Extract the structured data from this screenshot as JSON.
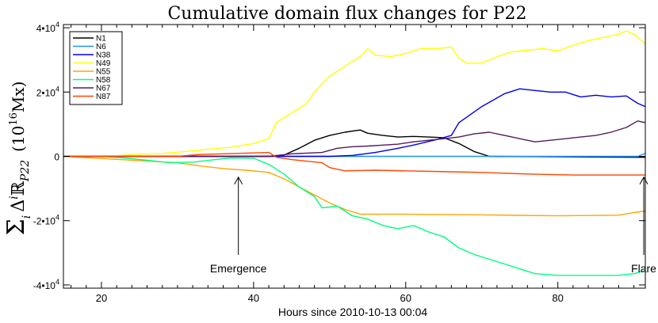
{
  "chart_data": {
    "type": "line",
    "title": "Cumulative domain flux changes for P22",
    "xlabel": "Hours since 2010-10-13 00:04",
    "ylabel_lines": [
      "Σ",
      "i",
      "Δ",
      "i",
      "ℝ",
      "P22",
      "(10",
      "16",
      "Mx)"
    ],
    "xlim": [
      15,
      91.5
    ],
    "ylim": [
      -41000,
      41000
    ],
    "x_ticks": [
      20,
      40,
      60,
      80
    ],
    "y_ticks": [
      {
        "value": 40000,
        "mant": "4•10",
        "exp": "4"
      },
      {
        "value": 20000,
        "mant": "2•10",
        "exp": "4"
      },
      {
        "value": 0,
        "mant": "0",
        "exp": ""
      },
      {
        "value": -20000,
        "mant": "-2•10",
        "exp": "4"
      },
      {
        "value": -40000,
        "mant": "-4•10",
        "exp": "4"
      }
    ],
    "legend_position": "top-left",
    "series": [
      {
        "name": "N1",
        "color": "#000000",
        "points": [
          [
            15,
            0
          ],
          [
            42,
            0
          ],
          [
            44,
            400
          ],
          [
            46,
            2500
          ],
          [
            48,
            5000
          ],
          [
            50,
            6500
          ],
          [
            52,
            7500
          ],
          [
            54,
            8200
          ],
          [
            55,
            7200
          ],
          [
            57,
            6500
          ],
          [
            59,
            6000
          ],
          [
            61,
            6200
          ],
          [
            63,
            6000
          ],
          [
            65,
            5800
          ],
          [
            67,
            4000
          ],
          [
            69,
            1500
          ],
          [
            71,
            0
          ],
          [
            91.5,
            -300
          ]
        ]
      },
      {
        "name": "N6",
        "color": "#1e90ff",
        "points": [
          [
            15,
            0
          ],
          [
            90.5,
            0
          ],
          [
            91.5,
            900
          ]
        ]
      },
      {
        "name": "N38",
        "color": "#0000ee",
        "points": [
          [
            15,
            0
          ],
          [
            50,
            0
          ],
          [
            53,
            300
          ],
          [
            56,
            1200
          ],
          [
            59,
            2500
          ],
          [
            61,
            3500
          ],
          [
            64,
            5200
          ],
          [
            66,
            6500
          ],
          [
            67,
            10500
          ],
          [
            70,
            15500
          ],
          [
            73,
            19500
          ],
          [
            75,
            21000
          ],
          [
            77,
            20500
          ],
          [
            79,
            20000
          ],
          [
            81,
            20000
          ],
          [
            83,
            18500
          ],
          [
            85,
            19000
          ],
          [
            87,
            18500
          ],
          [
            89,
            18800
          ],
          [
            90.5,
            16500
          ],
          [
            91.5,
            15500
          ]
        ]
      },
      {
        "name": "N49",
        "color": "#ffff00",
        "points": [
          [
            15,
            0
          ],
          [
            22,
            200
          ],
          [
            25,
            700
          ],
          [
            28,
            900
          ],
          [
            31,
            1500
          ],
          [
            34,
            2200
          ],
          [
            37,
            2800
          ],
          [
            40,
            4000
          ],
          [
            42,
            5500
          ],
          [
            43,
            10500
          ],
          [
            45,
            13500
          ],
          [
            46,
            15000
          ],
          [
            47,
            16500
          ],
          [
            48,
            20000
          ],
          [
            50,
            25000
          ],
          [
            52,
            28000
          ],
          [
            54,
            31000
          ],
          [
            55,
            33500
          ],
          [
            56,
            31500
          ],
          [
            58,
            31000
          ],
          [
            60,
            32000
          ],
          [
            62,
            33500
          ],
          [
            64,
            33500
          ],
          [
            66,
            34000
          ],
          [
            67,
            30500
          ],
          [
            68,
            29000
          ],
          [
            70,
            29000
          ],
          [
            72,
            31000
          ],
          [
            74,
            32500
          ],
          [
            76,
            33000
          ],
          [
            78,
            33500
          ],
          [
            80,
            32800
          ],
          [
            82,
            34500
          ],
          [
            84,
            36000
          ],
          [
            86,
            37000
          ],
          [
            88,
            38000
          ],
          [
            89,
            39000
          ],
          [
            90,
            38000
          ],
          [
            91.5,
            35000
          ]
        ]
      },
      {
        "name": "N55",
        "color": "#ffa500",
        "points": [
          [
            15,
            0
          ],
          [
            30,
            -2000
          ],
          [
            33,
            -3000
          ],
          [
            36,
            -3800
          ],
          [
            39,
            -4300
          ],
          [
            42,
            -5000
          ],
          [
            44,
            -7000
          ],
          [
            46,
            -9500
          ],
          [
            48,
            -12000
          ],
          [
            50,
            -14500
          ],
          [
            52,
            -16500
          ],
          [
            54,
            -18000
          ],
          [
            60,
            -18000
          ],
          [
            70,
            -18200
          ],
          [
            80,
            -18500
          ],
          [
            88,
            -18300
          ],
          [
            90,
            -17500
          ],
          [
            91.5,
            -17000
          ]
        ]
      },
      {
        "name": "N58",
        "color": "#00ff7f",
        "points": [
          [
            15,
            0
          ],
          [
            20,
            0
          ],
          [
            23,
            -500
          ],
          [
            26,
            -1200
          ],
          [
            29,
            -2000
          ],
          [
            32,
            -1800
          ],
          [
            35,
            -1000
          ],
          [
            37,
            -500
          ],
          [
            40,
            -600
          ],
          [
            42,
            -2500
          ],
          [
            44,
            -5500
          ],
          [
            46,
            -9500
          ],
          [
            48,
            -12500
          ],
          [
            49,
            -16000
          ],
          [
            51,
            -15500
          ],
          [
            53,
            -18500
          ],
          [
            55,
            -19500
          ],
          [
            57,
            -21500
          ],
          [
            59,
            -22500
          ],
          [
            61,
            -21500
          ],
          [
            63,
            -23500
          ],
          [
            65,
            -25000
          ],
          [
            67,
            -28500
          ],
          [
            69,
            -30500
          ],
          [
            71,
            -32000
          ],
          [
            73,
            -33500
          ],
          [
            75,
            -35000
          ],
          [
            77,
            -36500
          ],
          [
            80,
            -37000
          ],
          [
            84,
            -37000
          ],
          [
            88,
            -37000
          ],
          [
            90,
            -36500
          ],
          [
            91.5,
            -35500
          ]
        ]
      },
      {
        "name": "N67",
        "color": "#551a5b",
        "points": [
          [
            15,
            0
          ],
          [
            42,
            0
          ],
          [
            45,
            800
          ],
          [
            47,
            1000
          ],
          [
            49,
            1200
          ],
          [
            51,
            2500
          ],
          [
            53,
            3000
          ],
          [
            55,
            3200
          ],
          [
            57,
            3500
          ],
          [
            59,
            3800
          ],
          [
            61,
            4500
          ],
          [
            63,
            5000
          ],
          [
            65,
            5500
          ],
          [
            67,
            6000
          ],
          [
            69,
            7000
          ],
          [
            71,
            7500
          ],
          [
            73,
            6500
          ],
          [
            75,
            5500
          ],
          [
            77,
            4500
          ],
          [
            79,
            5000
          ],
          [
            81,
            5500
          ],
          [
            83,
            6000
          ],
          [
            85,
            6500
          ],
          [
            87,
            7500
          ],
          [
            89,
            9000
          ],
          [
            90.5,
            11000
          ],
          [
            91.5,
            10500
          ]
        ]
      },
      {
        "name": "N87",
        "color": "#ff4500",
        "points": [
          [
            15,
            0
          ],
          [
            30,
            0
          ],
          [
            33,
            600
          ],
          [
            36,
            800
          ],
          [
            39,
            1000
          ],
          [
            42,
            1200
          ],
          [
            43,
            -300
          ],
          [
            45,
            -1000
          ],
          [
            47,
            -1500
          ],
          [
            49,
            -2000
          ],
          [
            50,
            -3500
          ],
          [
            52,
            -4500
          ],
          [
            56,
            -4300
          ],
          [
            60,
            -4500
          ],
          [
            66,
            -4800
          ],
          [
            70,
            -5000
          ],
          [
            76,
            -5500
          ],
          [
            82,
            -5800
          ],
          [
            88,
            -5800
          ],
          [
            91.5,
            -5800
          ]
        ]
      }
    ],
    "annotations": [
      {
        "text": "Emergence",
        "x": 38,
        "arrow_tip_y": -5000
      },
      {
        "text": "Flare",
        "x": 91.3,
        "arrow_tip_y": -5000
      }
    ]
  }
}
